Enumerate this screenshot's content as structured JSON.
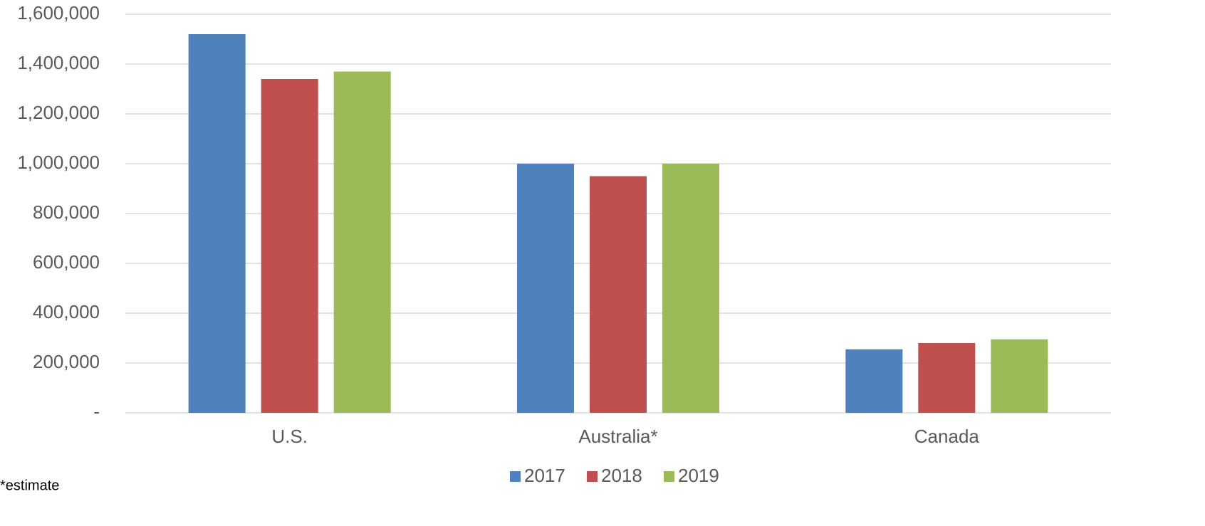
{
  "chart_data": {
    "type": "bar",
    "categories": [
      "U.S.",
      "Australia*",
      "Canada"
    ],
    "series": [
      {
        "name": "2017",
        "color": "#4f81bd",
        "values": [
          1520000,
          1000000,
          255000
        ]
      },
      {
        "name": "2018",
        "color": "#c0504d",
        "values": [
          1340000,
          950000,
          280000
        ]
      },
      {
        "name": "2019",
        "color": "#9bbb59",
        "values": [
          1370000,
          1000000,
          295000
        ]
      }
    ],
    "ylim": [
      0,
      1600000
    ],
    "yticks": [
      {
        "value": 0,
        "label": "-"
      },
      {
        "value": 200000,
        "label": "200,000"
      },
      {
        "value": 400000,
        "label": "400,000"
      },
      {
        "value": 600000,
        "label": "600,000"
      },
      {
        "value": 800000,
        "label": "800,000"
      },
      {
        "value": 1000000,
        "label": "1,000,000"
      },
      {
        "value": 1200000,
        "label": "1,200,000"
      },
      {
        "value": 1400000,
        "label": "1,400,000"
      },
      {
        "value": 1600000,
        "label": "1,600,000"
      }
    ],
    "grid": true,
    "legend": "bottom",
    "footnote": "*estimate"
  }
}
